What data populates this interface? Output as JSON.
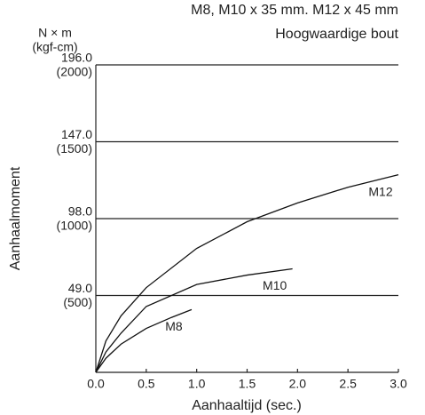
{
  "chart_data": {
    "type": "line",
    "title": "M8, M10 x 35 mm. M12 x 45 mm",
    "subtitle": "Hoogwaardige bout",
    "y_unit": "N × m",
    "y_unit_secondary": "(kgf-cm)",
    "y_label": "Aanhaalmoment",
    "x_label": "Aanhaaltijd (sec.)",
    "xlim": [
      0,
      3
    ],
    "ylim": [
      0,
      196
    ],
    "xticks": [
      {
        "value": 0,
        "label": "0.0"
      },
      {
        "value": 0.5,
        "label": "0.5"
      },
      {
        "value": 1,
        "label": "1.0"
      },
      {
        "value": 1.5,
        "label": "1.5"
      },
      {
        "value": 2,
        "label": "2.0"
      },
      {
        "value": 2.5,
        "label": "2.5"
      },
      {
        "value": 3,
        "label": "3.0"
      }
    ],
    "yticks": [
      {
        "value": 49,
        "label": "49.0"
      },
      {
        "value": 98,
        "label": "98.0"
      },
      {
        "value": 147,
        "label": "147.0"
      },
      {
        "value": 196,
        "label": "196.0"
      }
    ],
    "ytick_secondary_labels": [
      "(500)",
      "(1000)",
      "(1500)",
      "(2000)"
    ],
    "grid": true,
    "series": [
      {
        "name": "M8",
        "color": "#111111",
        "x": [
          0,
          0.1,
          0.25,
          0.5,
          0.75,
          0.95
        ],
        "values": [
          0,
          9,
          18,
          28,
          35,
          40
        ]
      },
      {
        "name": "M10",
        "color": "#111111",
        "x": [
          0,
          0.1,
          0.25,
          0.5,
          1,
          1.5,
          1.95
        ],
        "values": [
          0,
          13,
          25,
          42,
          56,
          62,
          66
        ]
      },
      {
        "name": "M12",
        "color": "#111111",
        "x": [
          0,
          0.1,
          0.25,
          0.5,
          1,
          1.5,
          2,
          2.5,
          3
        ],
        "values": [
          0,
          20,
          36,
          54,
          79,
          96,
          108,
          118,
          126
        ]
      }
    ]
  }
}
